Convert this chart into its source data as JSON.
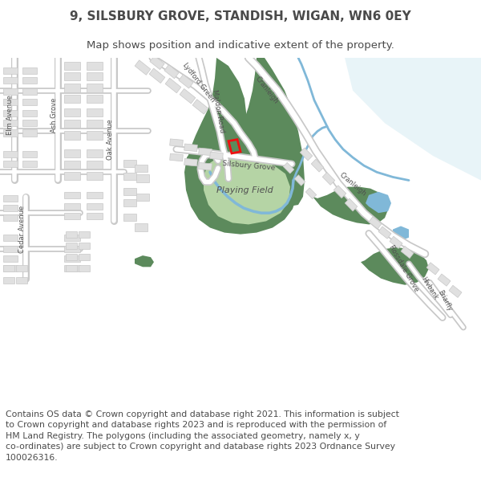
{
  "title": "9, SILSBURY GROVE, STANDISH, WIGAN, WN6 0EY",
  "subtitle": "Map shows position and indicative extent of the property.",
  "footer": "Contains OS data © Crown copyright and database right 2021. This information is subject to Crown copyright and database rights 2023 and is reproduced with the permission of HM Land Registry. The polygons (including the associated geometry, namely x, y co-ordinates) are subject to Crown copyright and database rights 2023 Ordnance Survey 100026316.",
  "map_bg": "#f5f5f5",
  "road_color": "#ffffff",
  "road_outline": "#c8c8c8",
  "building_color": "#e0e0e0",
  "building_outline": "#c8c8c8",
  "green_dark": "#5c8a5c",
  "green_light": "#b5d4a5",
  "water_color": "#80b8d8",
  "water_light": "#c8e8f8",
  "red_color": "#ee1111",
  "text_dark": "#4a4a4a",
  "title_fs": 11,
  "subtitle_fs": 9.5,
  "footer_fs": 7.8,
  "label_fs": 6.0
}
